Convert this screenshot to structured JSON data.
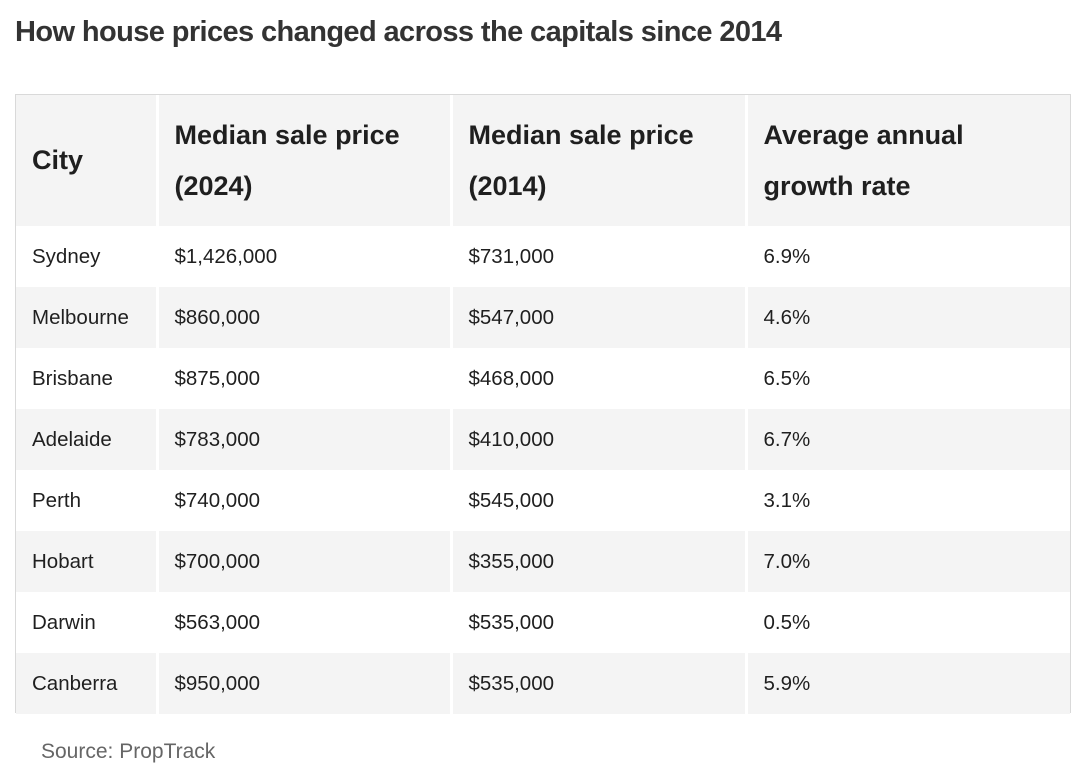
{
  "title": "How house prices changed across the capitals since 2014",
  "table": {
    "headers": [
      "City",
      "Median sale price (2024)",
      "Median sale price (2014)",
      "Average annual growth rate"
    ],
    "rows": [
      [
        "Sydney",
        "$1,426,000",
        "$731,000",
        "6.9%"
      ],
      [
        "Melbourne",
        "$860,000",
        "$547,000",
        "4.6%"
      ],
      [
        "Brisbane",
        "$875,000",
        "$468,000",
        "6.5%"
      ],
      [
        "Adelaide",
        "$783,000",
        "$410,000",
        "6.7%"
      ],
      [
        "Perth",
        "$740,000",
        "$545,000",
        "3.1%"
      ],
      [
        "Hobart",
        "$700,000",
        "$355,000",
        "7.0%"
      ],
      [
        "Darwin",
        "$563,000",
        "$535,000",
        "0.5%"
      ],
      [
        "Canberra",
        "$950,000",
        "$535,000",
        "5.9%"
      ]
    ]
  },
  "source": "Source: PropTrack",
  "colors": {
    "header_bg": "#f4f4f4",
    "stripe_bg": "#f4f4f4",
    "title_color": "#333333",
    "source_color": "#666666"
  }
}
